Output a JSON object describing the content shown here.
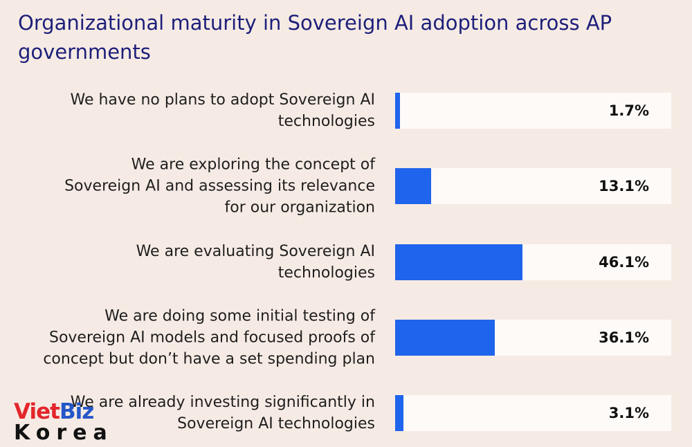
{
  "chart_data": {
    "type": "bar",
    "orientation": "horizontal",
    "title": "Organizational maturity in Sovereign AI adoption across AP governments",
    "categories": [
      "We have no plans to adopt Sovereign AI technologies",
      "We are exploring the concept of Sovereign AI and assessing its relevance for our organization",
      "We are evaluating Sovereign AI technologies",
      "We are doing some initial testing of Sovereign AI models and focused proofs of concept but don’t have a set spending plan",
      "We are already investing significantly in Sovereign AI technologies"
    ],
    "values": [
      1.7,
      13.1,
      46.1,
      36.1,
      3.1
    ],
    "value_labels": [
      "1.7%",
      "13.1%",
      "46.1%",
      "36.1%",
      "3.1%"
    ],
    "xlim": [
      0,
      100
    ],
    "grid": false,
    "colors": {
      "bar": "#1f64ec",
      "track": "#fdfaf8",
      "background": "#f6ebe4",
      "title": "#1d1f7a"
    }
  },
  "watermark": {
    "line1": "VietBiz",
    "line2": "Korea"
  }
}
